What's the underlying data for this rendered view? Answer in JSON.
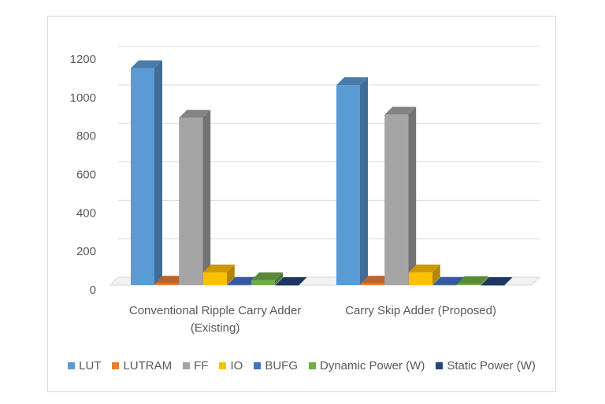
{
  "chart_data": {
    "type": "bar3d",
    "categories": [
      "Conventional Ripple Carry Adder (Existing)",
      "Carry Skip Adder (Proposed)"
    ],
    "series": [
      {
        "name": "LUT",
        "color": "#5b9bd5",
        "values": [
          1128,
          1040
        ]
      },
      {
        "name": "LUTRAM",
        "color": "#ed7d31",
        "values": [
          7,
          7
        ]
      },
      {
        "name": "FF",
        "color": "#a5a5a5",
        "values": [
          870,
          886
        ]
      },
      {
        "name": "IO",
        "color": "#ffc000",
        "values": [
          66,
          66
        ]
      },
      {
        "name": "BUFG",
        "color": "#4472c4",
        "values": [
          1,
          1
        ]
      },
      {
        "name": "Dynamic Power (W)",
        "color": "#70ad47",
        "values": [
          25,
          5
        ]
      },
      {
        "name": "Static Power (W)",
        "color": "#264478",
        "values": [
          0.1,
          0.1
        ]
      }
    ],
    "ylim": [
      0,
      1200
    ],
    "yticks": [
      0,
      200,
      400,
      600,
      800,
      1000,
      1200
    ],
    "grid": true,
    "legend": "bottom"
  }
}
